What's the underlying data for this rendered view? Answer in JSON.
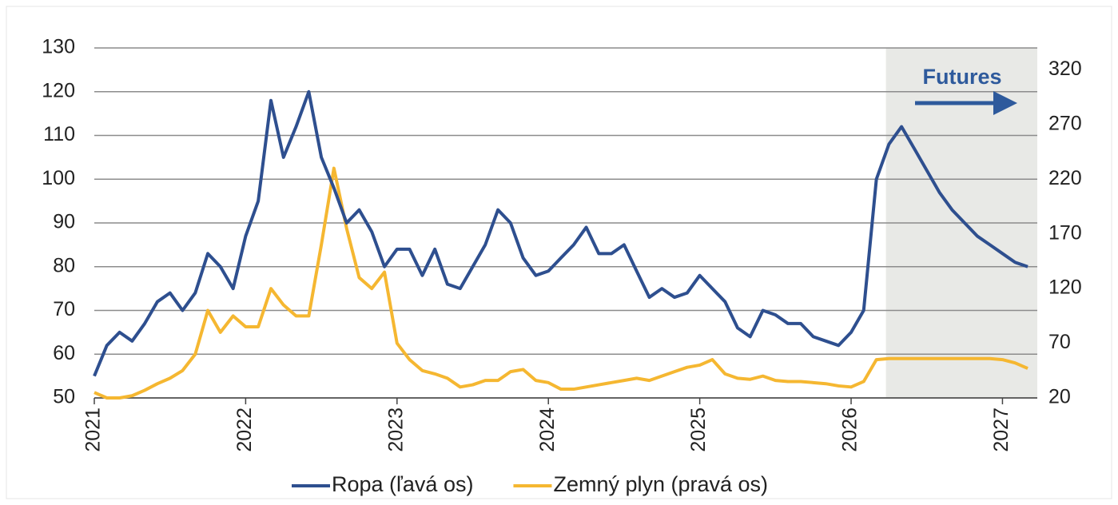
{
  "chart_data": {
    "type": "line",
    "annotation": "Futures",
    "forecast_start": 2026.23,
    "x": [
      2021,
      2021.083,
      2021.167,
      2021.25,
      2021.333,
      2021.417,
      2021.5,
      2021.583,
      2021.667,
      2021.75,
      2021.833,
      2021.917,
      2022,
      2022.083,
      2022.167,
      2022.25,
      2022.333,
      2022.417,
      2022.5,
      2022.583,
      2022.667,
      2022.75,
      2022.833,
      2022.917,
      2023,
      2023.083,
      2023.167,
      2023.25,
      2023.333,
      2023.417,
      2023.5,
      2023.583,
      2023.667,
      2023.75,
      2023.833,
      2023.917,
      2024,
      2024.083,
      2024.167,
      2024.25,
      2024.333,
      2024.417,
      2024.5,
      2024.583,
      2024.667,
      2024.75,
      2024.833,
      2024.917,
      2025,
      2025.083,
      2025.167,
      2025.25,
      2025.333,
      2025.417,
      2025.5,
      2025.583,
      2025.667,
      2025.75,
      2025.833,
      2025.917,
      2026,
      2026.083,
      2026.167,
      2026.25,
      2026.333,
      2026.417,
      2026.5,
      2026.583,
      2026.667,
      2026.75,
      2026.833,
      2026.917,
      2027,
      2027.083,
      2027.167
    ],
    "series": [
      {
        "name": "Ropa (ľavá os)",
        "color": "#2e4f8f",
        "axis": "y",
        "values": [
          55,
          62,
          65,
          63,
          67,
          72,
          74,
          70,
          74,
          83,
          80,
          75,
          87,
          95,
          118,
          105,
          112,
          120,
          105,
          98,
          90,
          93,
          88,
          80,
          84,
          84,
          78,
          84,
          76,
          75,
          80,
          85,
          93,
          90,
          82,
          78,
          79,
          82,
          85,
          89,
          83,
          83,
          85,
          79,
          73,
          75,
          73,
          74,
          78,
          75,
          72,
          66,
          64,
          70,
          69,
          67,
          67,
          64,
          63,
          62,
          65,
          70,
          100,
          108,
          112,
          107,
          102,
          97,
          93,
          90,
          87,
          85,
          83,
          81,
          80
        ]
      },
      {
        "name": "Zemný plyn (pravá os)",
        "color": "#f5b731",
        "axis": "y2",
        "values": [
          25,
          20,
          20,
          22,
          27,
          33,
          38,
          45,
          60,
          100,
          80,
          95,
          85,
          85,
          120,
          105,
          95,
          95,
          160,
          230,
          175,
          130,
          120,
          135,
          70,
          55,
          45,
          42,
          38,
          30,
          32,
          36,
          36,
          44,
          46,
          36,
          34,
          28,
          28,
          30,
          32,
          34,
          36,
          38,
          36,
          40,
          44,
          48,
          50,
          55,
          42,
          38,
          37,
          40,
          36,
          35,
          35,
          34,
          33,
          31,
          30,
          35,
          55,
          56,
          56,
          56,
          56,
          56,
          56,
          56,
          56,
          56,
          55,
          52,
          47
        ]
      }
    ],
    "xlim": [
      2021,
      2027.23
    ],
    "xticks": [
      2021,
      2022,
      2023,
      2024,
      2025,
      2026,
      2027
    ],
    "ylim": [
      50,
      130
    ],
    "yticks": [
      50,
      60,
      70,
      80,
      90,
      100,
      110,
      120,
      130
    ],
    "y2lim": [
      20,
      340
    ],
    "y2ticks": [
      20,
      70,
      120,
      170,
      220,
      270,
      320
    ],
    "grid": true,
    "legend": "bottom"
  }
}
